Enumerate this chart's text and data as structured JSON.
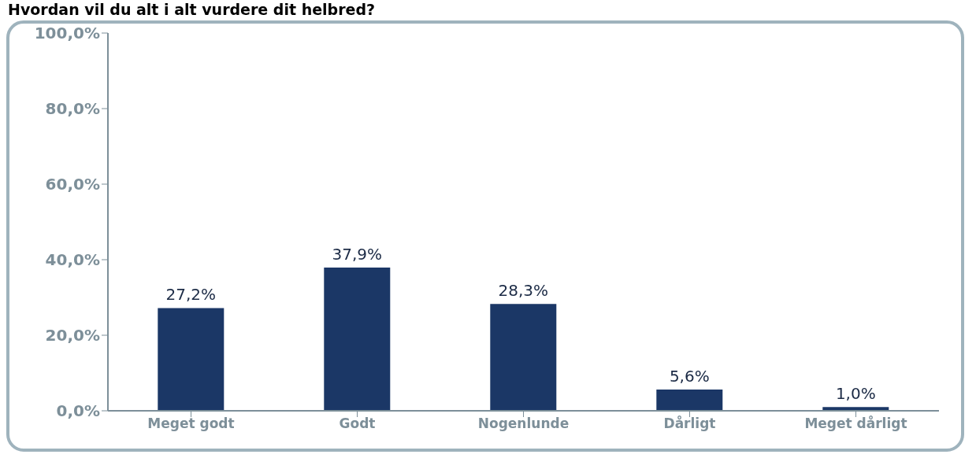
{
  "chart_data": {
    "type": "bar",
    "title": "Hvordan vil du alt i alt vurdere dit helbred?",
    "categories": [
      "Meget godt",
      "Godt",
      "Nogenlunde",
      "Dårligt",
      "Meget dårligt"
    ],
    "values": [
      27.2,
      37.9,
      28.3,
      5.6,
      1.0
    ],
    "value_labels": [
      "27,2%",
      "37,9%",
      "28,3%",
      "5,6%",
      "1,0%"
    ],
    "color": "#1b3766",
    "ylim": [
      0,
      100
    ],
    "yticks": [
      {
        "value": 0,
        "label": "0,0%"
      },
      {
        "value": 20,
        "label": "20,0%"
      },
      {
        "value": 40,
        "label": "40,0%"
      },
      {
        "value": 60,
        "label": "60,0%"
      },
      {
        "value": 80,
        "label": "80,0%"
      },
      {
        "value": 100,
        "label": "100,0%"
      }
    ],
    "grid": false,
    "legend": false
  }
}
